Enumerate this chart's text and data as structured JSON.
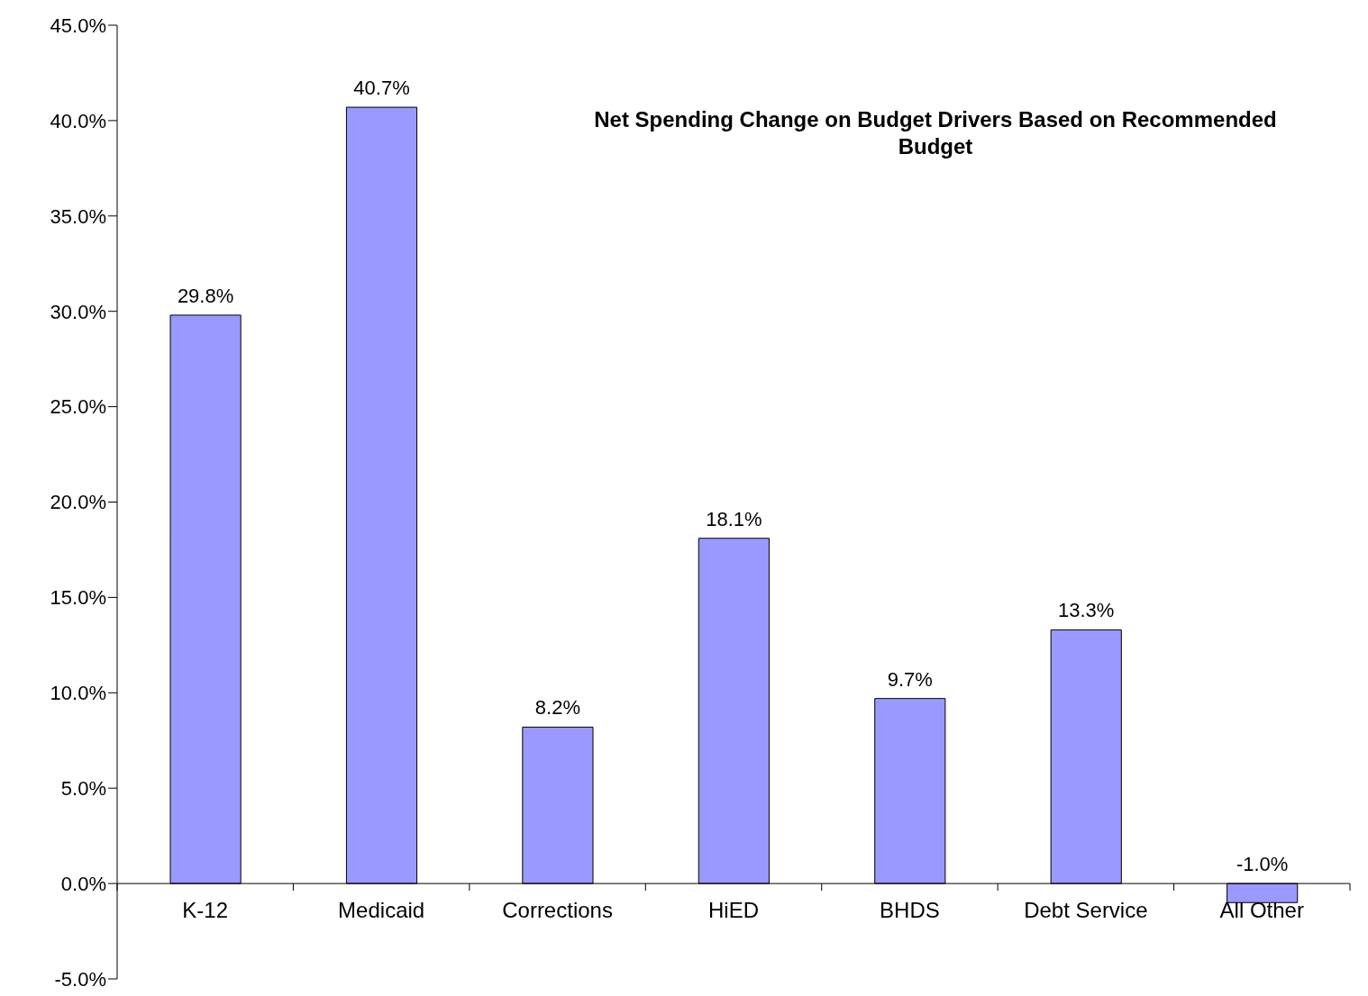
{
  "chart_data": {
    "type": "bar",
    "title": "Net Spending Change on Budget Drivers Based on Recommended Budget",
    "categories": [
      "K-12",
      "Medicaid",
      "Corrections",
      "HiED",
      "BHDS",
      "Debt Service",
      "All Other"
    ],
    "values": [
      29.8,
      40.7,
      8.2,
      18.1,
      9.7,
      13.3,
      -1.0
    ],
    "value_labels": [
      "29.8%",
      "40.7%",
      "8.2%",
      "18.1%",
      "9.7%",
      "13.3%",
      "-1.0%"
    ],
    "color": "#9999ff",
    "ylim": [
      -5,
      45
    ],
    "yticks": [
      {
        "value": -5,
        "label": "-5.0%"
      },
      {
        "value": 0,
        "label": "0.0%"
      },
      {
        "value": 5,
        "label": "5.0%"
      },
      {
        "value": 10,
        "label": "10.0%"
      },
      {
        "value": 15,
        "label": "15.0%"
      },
      {
        "value": 20,
        "label": "20.0%"
      },
      {
        "value": 25,
        "label": "25.0%"
      },
      {
        "value": 30,
        "label": "30.0%"
      },
      {
        "value": 35,
        "label": "35.0%"
      },
      {
        "value": 40,
        "label": "40.0%"
      },
      {
        "value": 45,
        "label": "45.0%"
      }
    ],
    "grid": false,
    "legend": false
  }
}
